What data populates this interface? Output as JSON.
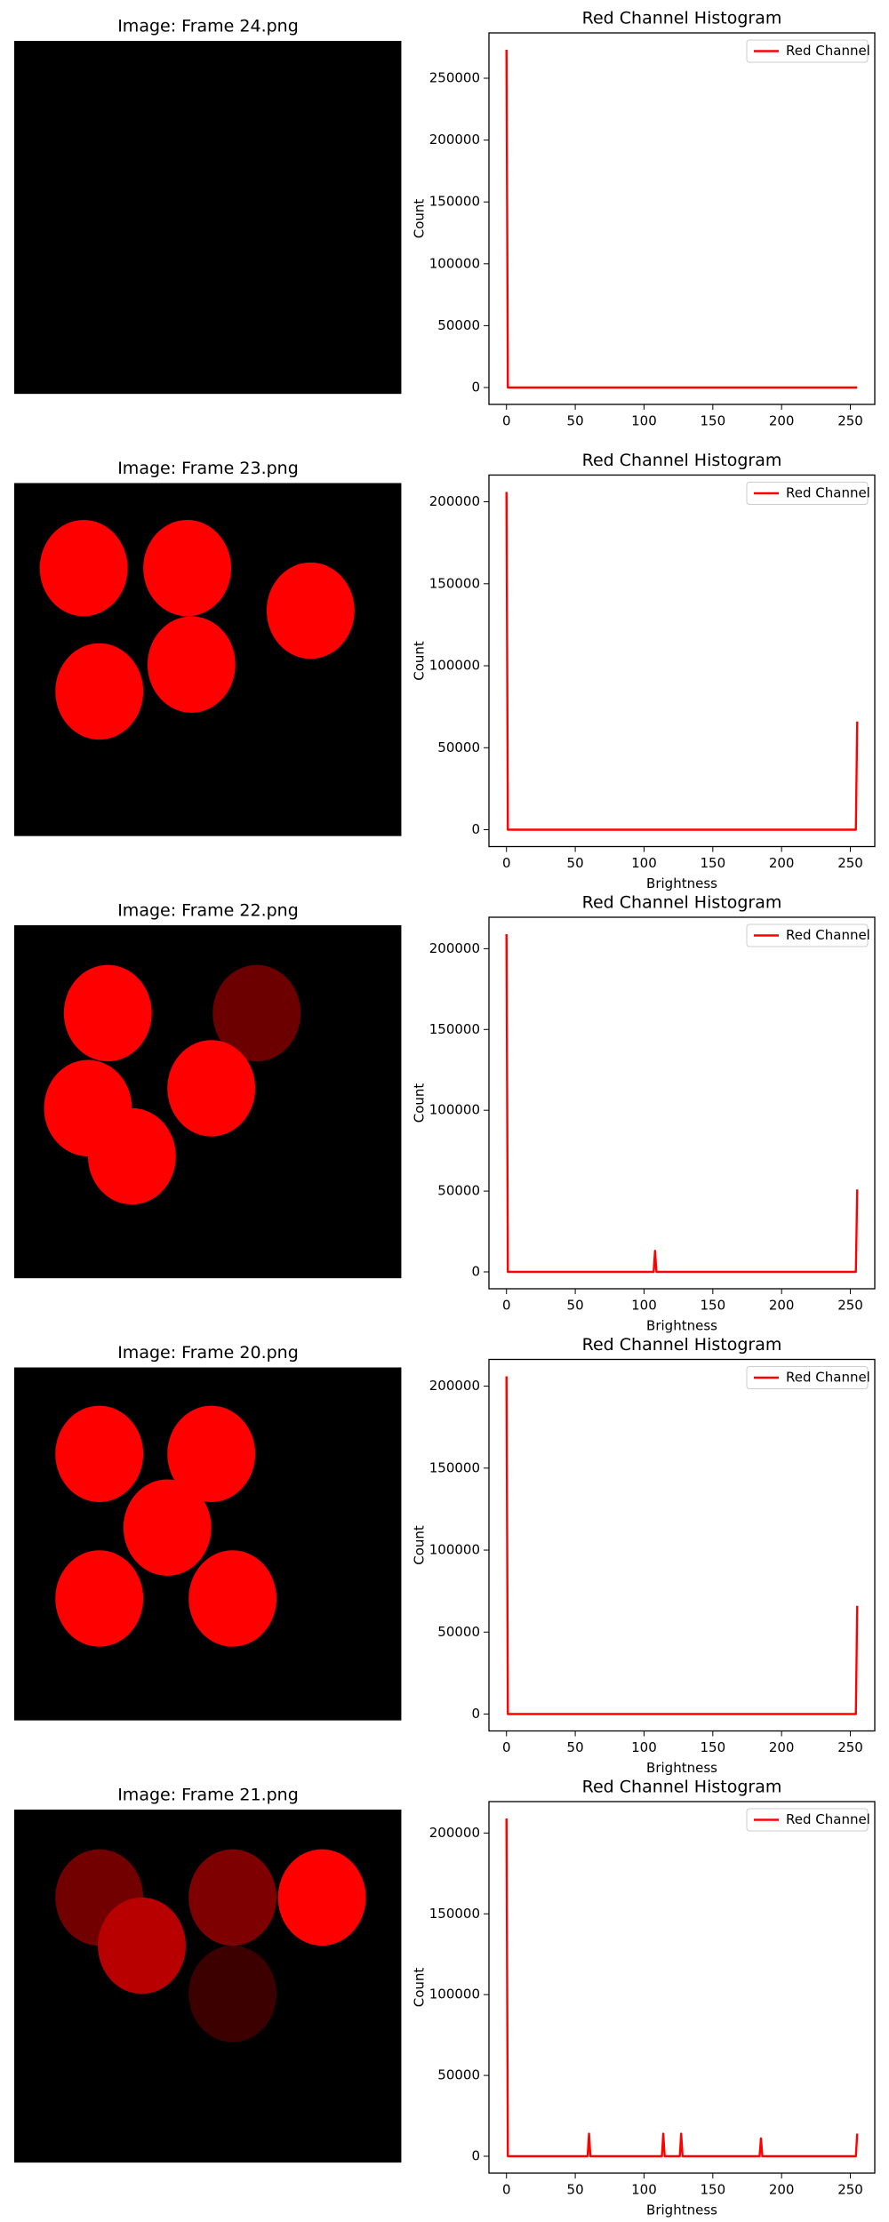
{
  "chart_data": [
    {
      "type": "image",
      "title": "Image: Frame 24.png"
    },
    {
      "type": "line",
      "title": "Red Channel Histogram",
      "y_label": "Count",
      "x": [
        0,
        1,
        254,
        255
      ],
      "series": [
        {
          "name": "Red Channel",
          "color": "#ff0000",
          "values": [
            273000,
            0,
            0,
            0
          ]
        }
      ],
      "xlim": [
        -12.75,
        267.75
      ],
      "ylim": [
        -13650,
        286650
      ],
      "xticks": [
        0,
        50,
        100,
        150,
        200,
        250
      ],
      "yticks": [
        0,
        50000,
        100000,
        150000,
        200000,
        250000
      ],
      "legend": "upper right"
    },
    {
      "type": "image",
      "title": "Image: Frame 23.png"
    },
    {
      "type": "line",
      "title": "Red Channel Histogram",
      "x_label": "Brightness",
      "y_label": "Count",
      "x": [
        0,
        1,
        254,
        255
      ],
      "series": [
        {
          "name": "Red Channel",
          "color": "#ff0000",
          "values": [
            206000,
            0,
            0,
            66000
          ]
        }
      ],
      "xlim": [
        -12.75,
        267.75
      ],
      "ylim": [
        -10300,
        216300
      ],
      "xticks": [
        0,
        50,
        100,
        150,
        200,
        250
      ],
      "yticks": [
        0,
        50000,
        100000,
        150000,
        200000
      ],
      "legend": "upper right"
    },
    {
      "type": "image",
      "title": "Image: Frame 22.png"
    },
    {
      "type": "line",
      "title": "Red Channel Histogram",
      "x_label": "Brightness",
      "y_label": "Count",
      "x": [
        0,
        1,
        107,
        108,
        109,
        254,
        255
      ],
      "series": [
        {
          "name": "Red Channel",
          "color": "#ff0000",
          "values": [
            209000,
            0,
            0,
            13000,
            0,
            0,
            51000
          ]
        }
      ],
      "xlim": [
        -12.75,
        267.75
      ],
      "ylim": [
        -10450,
        219450
      ],
      "xticks": [
        0,
        50,
        100,
        150,
        200,
        250
      ],
      "yticks": [
        0,
        50000,
        100000,
        150000,
        200000
      ],
      "legend": "upper right"
    },
    {
      "type": "image",
      "title": "Image: Frame 20.png"
    },
    {
      "type": "line",
      "title": "Red Channel Histogram",
      "x_label": "Brightness",
      "y_label": "Count",
      "x": [
        0,
        1,
        254,
        255
      ],
      "series": [
        {
          "name": "Red Channel",
          "color": "#ff0000",
          "values": [
            206000,
            0,
            0,
            66000
          ]
        }
      ],
      "xlim": [
        -12.75,
        267.75
      ],
      "ylim": [
        -10300,
        216300
      ],
      "xticks": [
        0,
        50,
        100,
        150,
        200,
        250
      ],
      "yticks": [
        0,
        50000,
        100000,
        150000,
        200000
      ],
      "legend": "upper right"
    },
    {
      "type": "image",
      "title": "Image: Frame 21.png"
    },
    {
      "type": "line",
      "title": "Red Channel Histogram",
      "x_label": "Brightness",
      "y_label": "Count",
      "x": [
        0,
        1,
        59,
        60,
        61,
        113,
        114,
        115,
        126,
        127,
        128,
        184,
        185,
        186,
        254,
        255
      ],
      "series": [
        {
          "name": "Red Channel",
          "color": "#ff0000",
          "values": [
            209000,
            0,
            0,
            14000,
            0,
            0,
            14000,
            0,
            0,
            14000,
            0,
            0,
            11000,
            0,
            0,
            14000
          ]
        }
      ],
      "xlim": [
        -12.75,
        267.75
      ],
      "ylim": [
        -10450,
        219450
      ],
      "xticks": [
        0,
        50,
        100,
        150,
        200,
        250
      ],
      "yticks": [
        0,
        50000,
        100000,
        150000,
        200000
      ],
      "legend": "upper right"
    }
  ]
}
